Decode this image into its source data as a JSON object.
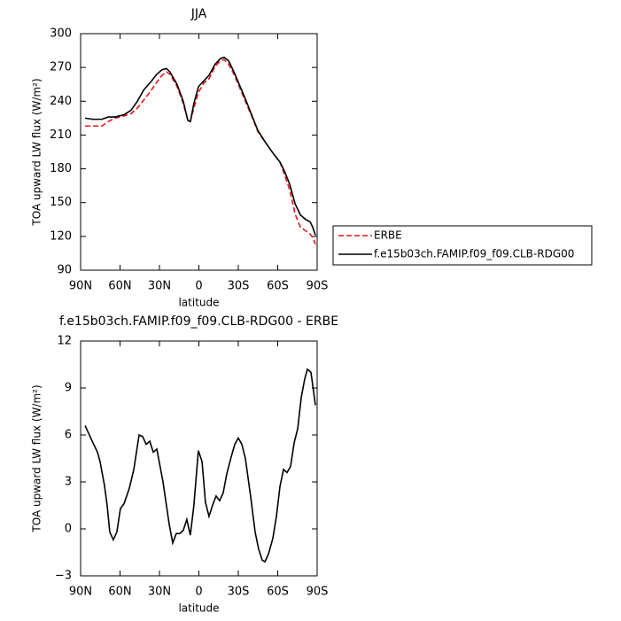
{
  "chart_data": [
    {
      "type": "line",
      "title": "JJA",
      "x_label": "latitude",
      "y_label": "TOA upward LW flux (W/m²)",
      "x": [
        86.6,
        80.6,
        73.8,
        69,
        63.7,
        57,
        51.6,
        46.8,
        42,
        36.7,
        32,
        28,
        24.6,
        22,
        16.6,
        11.9,
        8.4,
        6.5,
        3.8,
        0.3,
        -3.7,
        -7.7,
        -12.4,
        -16.5,
        -19.2,
        -22.6,
        -26.7,
        -30.7,
        -36.1,
        -40.8,
        -44.9,
        -50.9,
        -57,
        -61.7,
        -65.1,
        -69.2,
        -73.2,
        -77.3,
        -81.3,
        -84.6,
        -86.7,
        -88.7
      ],
      "series": [
        {
          "name": "ERBE",
          "color": "#e8141c",
          "style": "dashed",
          "values": [
            218,
            218,
            218,
            222,
            225,
            227,
            229,
            234,
            241,
            249,
            257,
            263,
            266,
            264,
            253,
            238,
            223,
            222,
            234,
            248,
            256,
            260,
            271,
            276,
            277,
            273,
            264,
            253,
            238,
            225,
            213,
            203,
            193,
            186,
            175,
            161,
            140,
            128,
            125,
            122,
            119,
            113
          ]
        },
        {
          "name": "f.e15b03ch.FAMIP.f09_f09.CLB-RDG00",
          "color": "#000000",
          "style": "solid",
          "values": [
            225,
            224,
            224,
            226,
            226,
            228,
            232,
            240,
            250,
            257,
            264,
            268,
            269,
            266,
            255,
            240,
            223,
            222,
            238,
            253,
            258,
            263,
            273,
            278,
            279,
            276,
            266,
            255,
            240,
            226,
            214,
            203,
            193,
            186,
            178,
            166,
            149,
            139,
            135,
            133,
            128,
            121
          ]
        }
      ],
      "xlim": [
        90,
        -90
      ],
      "xticks": [
        {
          "value": 90,
          "label": "90N"
        },
        {
          "value": 60,
          "label": "60N"
        },
        {
          "value": 30,
          "label": "30N"
        },
        0,
        {
          "value": -30,
          "label": "30S"
        },
        {
          "value": -60,
          "label": "60S"
        },
        {
          "value": -90,
          "label": "90S"
        }
      ],
      "ylim": [
        90,
        300
      ],
      "yticks": [
        90,
        120,
        150,
        180,
        210,
        240,
        270,
        300
      ],
      "legend": "right"
    },
    {
      "type": "line",
      "title": "f.e15b03ch.FAMIP.f09_f09.CLB-RDG00 - ERBE",
      "x_label": "latitude",
      "y_label": "TOA upward LW flux (W/m²)",
      "x": [
        86.6,
        80.6,
        77.2,
        75.2,
        71.9,
        69.8,
        67.8,
        65.1,
        62.4,
        59.7,
        57,
        52.9,
        49.5,
        45.5,
        42.8,
        40.1,
        37.4,
        34.7,
        32,
        27.3,
        22.6,
        19.9,
        17.2,
        14.6,
        11.9,
        9.2,
        6.5,
        3.8,
        0.4,
        -2.4,
        -5,
        -7.7,
        -10.4,
        -13.1,
        -15.8,
        -18.5,
        -21.2,
        -24.6,
        -27.3,
        -30,
        -32.7,
        -35.4,
        -39.5,
        -42.8,
        -45.5,
        -48.2,
        -50.3,
        -53,
        -56.3,
        -59,
        -61.7,
        -64.4,
        -67.1,
        -69.8,
        -72.5,
        -75.2,
        -77.9,
        -80.6,
        -82.6,
        -85.3,
        -88.7
      ],
      "values": [
        6.6,
        5.5,
        4.9,
        4.3,
        2.8,
        1.5,
        -0.2,
        -0.7,
        -0.2,
        1.3,
        1.6,
        2.6,
        3.8,
        6.0,
        5.9,
        5.4,
        5.6,
        4.9,
        5.1,
        3.0,
        0.3,
        -0.9,
        -0.3,
        -0.3,
        -0.1,
        0.6,
        -0.4,
        1.5,
        5.0,
        4.3,
        1.7,
        0.8,
        1.5,
        2.1,
        1.8,
        2.3,
        3.5,
        4.6,
        5.4,
        5.8,
        5.4,
        4.5,
        2.0,
        -0.2,
        -1.3,
        -2.0,
        -2.1,
        -1.6,
        -0.6,
        0.8,
        2.7,
        3.8,
        3.6,
        4.0,
        5.5,
        6.4,
        8.4,
        9.6,
        10.2,
        10.0,
        7.9
      ],
      "color": "#000000",
      "xlim": [
        90,
        -90
      ],
      "xticks": [
        {
          "value": 90,
          "label": "90N"
        },
        {
          "value": 60,
          "label": "60N"
        },
        {
          "value": 30,
          "label": "30N"
        },
        0,
        {
          "value": -30,
          "label": "30S"
        },
        {
          "value": -60,
          "label": "60S"
        },
        {
          "value": -90,
          "label": "90S"
        }
      ],
      "ylim": [
        -3,
        12
      ],
      "yticks": [
        {
          "value": -3,
          "label": "−3"
        },
        0,
        3,
        6,
        9,
        12
      ]
    }
  ]
}
